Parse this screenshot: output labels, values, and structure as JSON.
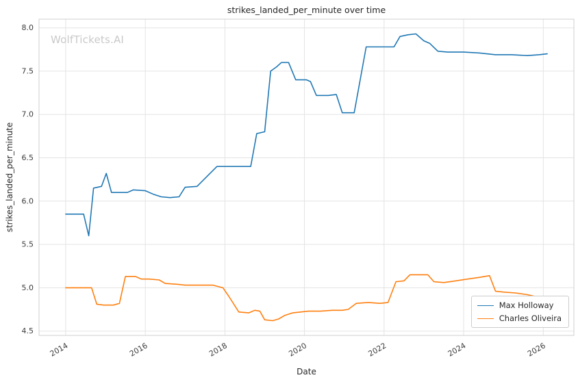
{
  "watermark": "WolfTickets.AI",
  "chart_data": {
    "type": "line",
    "title": "strikes_landed_per_minute over time",
    "xlabel": "Date",
    "ylabel": "strikes_landed_per_minute",
    "xlim": [
      2013.33,
      2026.77
    ],
    "ylim": [
      4.45,
      8.1
    ],
    "x_ticks": [
      2014,
      2016,
      2018,
      2020,
      2022,
      2024,
      2026
    ],
    "y_ticks": [
      4.5,
      5.0,
      5.5,
      6.0,
      6.5,
      7.0,
      7.5,
      8.0
    ],
    "grid": true,
    "legend_position": "lower right",
    "series": [
      {
        "name": "Max Holloway",
        "color": "#1f77b4",
        "points": [
          [
            2014.0,
            5.85
          ],
          [
            2014.45,
            5.85
          ],
          [
            2014.58,
            5.6
          ],
          [
            2014.7,
            6.15
          ],
          [
            2014.9,
            6.17
          ],
          [
            2015.02,
            6.32
          ],
          [
            2015.15,
            6.1
          ],
          [
            2015.55,
            6.1
          ],
          [
            2015.7,
            6.13
          ],
          [
            2016.0,
            6.12
          ],
          [
            2016.2,
            6.08
          ],
          [
            2016.4,
            6.05
          ],
          [
            2016.62,
            6.04
          ],
          [
            2016.85,
            6.05
          ],
          [
            2017.0,
            6.16
          ],
          [
            2017.3,
            6.17
          ],
          [
            2017.8,
            6.4
          ],
          [
            2018.3,
            6.4
          ],
          [
            2018.65,
            6.4
          ],
          [
            2018.8,
            6.78
          ],
          [
            2019.0,
            6.8
          ],
          [
            2019.15,
            7.5
          ],
          [
            2019.3,
            7.55
          ],
          [
            2019.42,
            7.6
          ],
          [
            2019.6,
            7.6
          ],
          [
            2019.78,
            7.4
          ],
          [
            2020.05,
            7.4
          ],
          [
            2020.15,
            7.38
          ],
          [
            2020.3,
            7.22
          ],
          [
            2020.6,
            7.22
          ],
          [
            2020.8,
            7.23
          ],
          [
            2020.95,
            7.02
          ],
          [
            2021.25,
            7.02
          ],
          [
            2021.55,
            7.78
          ],
          [
            2021.9,
            7.78
          ],
          [
            2022.25,
            7.78
          ],
          [
            2022.4,
            7.9
          ],
          [
            2022.6,
            7.92
          ],
          [
            2022.8,
            7.93
          ],
          [
            2023.0,
            7.85
          ],
          [
            2023.15,
            7.82
          ],
          [
            2023.35,
            7.73
          ],
          [
            2023.6,
            7.72
          ],
          [
            2024.0,
            7.72
          ],
          [
            2024.4,
            7.71
          ],
          [
            2024.8,
            7.69
          ],
          [
            2025.2,
            7.69
          ],
          [
            2025.6,
            7.68
          ],
          [
            2025.9,
            7.69
          ],
          [
            2026.1,
            7.7
          ]
        ]
      },
      {
        "name": "Charles Oliveira",
        "color": "#ff7f0e",
        "points": [
          [
            2014.0,
            5.0
          ],
          [
            2014.4,
            5.0
          ],
          [
            2014.65,
            5.0
          ],
          [
            2014.78,
            4.81
          ],
          [
            2014.95,
            4.8
          ],
          [
            2015.2,
            4.8
          ],
          [
            2015.35,
            4.82
          ],
          [
            2015.5,
            5.13
          ],
          [
            2015.75,
            5.13
          ],
          [
            2015.9,
            5.1
          ],
          [
            2016.1,
            5.1
          ],
          [
            2016.35,
            5.09
          ],
          [
            2016.5,
            5.05
          ],
          [
            2016.8,
            5.04
          ],
          [
            2017.0,
            5.03
          ],
          [
            2017.4,
            5.03
          ],
          [
            2017.7,
            5.03
          ],
          [
            2017.95,
            5.0
          ],
          [
            2018.1,
            4.9
          ],
          [
            2018.35,
            4.72
          ],
          [
            2018.6,
            4.71
          ],
          [
            2018.75,
            4.74
          ],
          [
            2018.88,
            4.73
          ],
          [
            2019.0,
            4.63
          ],
          [
            2019.2,
            4.62
          ],
          [
            2019.35,
            4.64
          ],
          [
            2019.5,
            4.68
          ],
          [
            2019.7,
            4.71
          ],
          [
            2019.9,
            4.72
          ],
          [
            2020.1,
            4.73
          ],
          [
            2020.4,
            4.73
          ],
          [
            2020.7,
            4.74
          ],
          [
            2020.95,
            4.74
          ],
          [
            2021.1,
            4.75
          ],
          [
            2021.3,
            4.82
          ],
          [
            2021.6,
            4.83
          ],
          [
            2021.9,
            4.82
          ],
          [
            2022.1,
            4.83
          ],
          [
            2022.3,
            5.07
          ],
          [
            2022.5,
            5.08
          ],
          [
            2022.65,
            5.15
          ],
          [
            2022.9,
            5.15
          ],
          [
            2023.1,
            5.15
          ],
          [
            2023.25,
            5.07
          ],
          [
            2023.5,
            5.06
          ],
          [
            2023.8,
            5.08
          ],
          [
            2024.1,
            5.1
          ],
          [
            2024.4,
            5.12
          ],
          [
            2024.65,
            5.14
          ],
          [
            2024.8,
            4.96
          ],
          [
            2025.0,
            4.95
          ],
          [
            2025.3,
            4.94
          ],
          [
            2025.6,
            4.92
          ],
          [
            2025.9,
            4.89
          ],
          [
            2026.1,
            4.88
          ]
        ]
      }
    ],
    "style": {
      "grid_color": "#e3e3e3",
      "border_color": "#cfcfcf",
      "tick_label_color": "#3b3b3b"
    }
  }
}
